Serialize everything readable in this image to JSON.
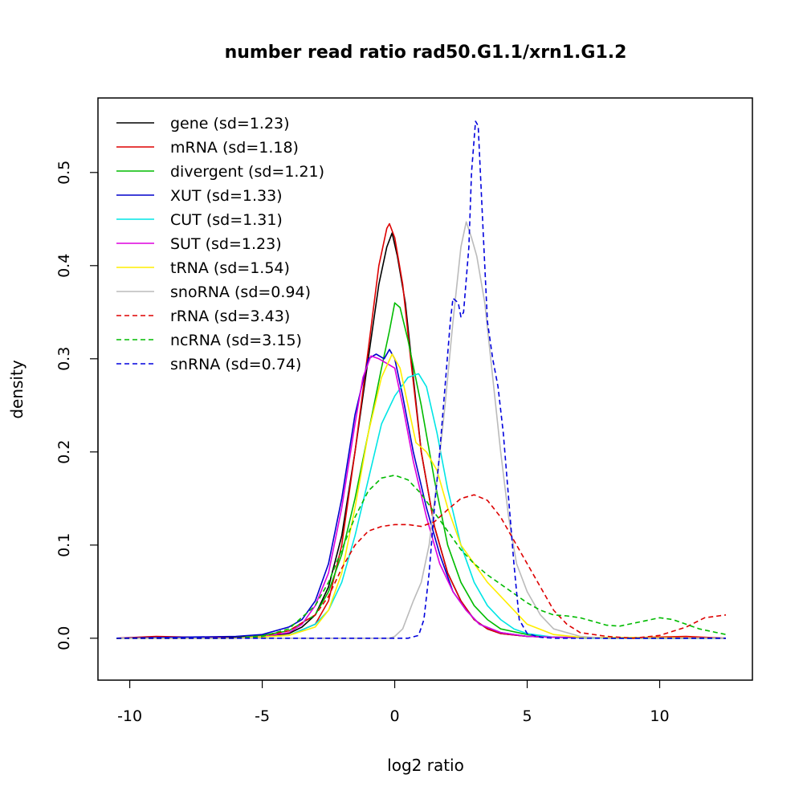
{
  "chart_data": {
    "type": "line",
    "title": "number read ratio rad50.G1.1/xrn1.G1.2",
    "xlabel": "log2 ratio",
    "ylabel": "density",
    "xlim": [
      -11.2,
      13.5
    ],
    "ylim": [
      -0.045,
      0.58
    ],
    "xticks": [
      -10,
      -5,
      0,
      5,
      10
    ],
    "xtick_labels": [
      "-10",
      "-5",
      "0",
      "5",
      "10"
    ],
    "yticks": [
      0.0,
      0.1,
      0.2,
      0.3,
      0.4,
      0.5
    ],
    "ytick_labels": [
      "0.0",
      "0.1",
      "0.2",
      "0.3",
      "0.4",
      "0.5"
    ],
    "grid": false,
    "legend_position": "top-left",
    "series": [
      {
        "name": "gene (sd=1.23)",
        "color": "#000000",
        "dash": "solid",
        "points": [
          [
            -10.5,
            0
          ],
          [
            -6,
            0.001
          ],
          [
            -5,
            0.002
          ],
          [
            -4,
            0.005
          ],
          [
            -3.5,
            0.012
          ],
          [
            -3,
            0.025
          ],
          [
            -2.5,
            0.055
          ],
          [
            -2,
            0.11
          ],
          [
            -1.5,
            0.2
          ],
          [
            -1,
            0.3
          ],
          [
            -0.6,
            0.38
          ],
          [
            -0.3,
            0.42
          ],
          [
            -0.1,
            0.435
          ],
          [
            0.1,
            0.41
          ],
          [
            0.4,
            0.36
          ],
          [
            0.7,
            0.28
          ],
          [
            1,
            0.2
          ],
          [
            1.5,
            0.12
          ],
          [
            2,
            0.07
          ],
          [
            2.5,
            0.04
          ],
          [
            3,
            0.02
          ],
          [
            3.5,
            0.01
          ],
          [
            4,
            0.005
          ],
          [
            5,
            0.002
          ],
          [
            6,
            0.001
          ],
          [
            8,
            0
          ],
          [
            12.5,
            0
          ]
        ]
      },
      {
        "name": "mRNA (sd=1.18)",
        "color": "#dd0000",
        "dash": "solid",
        "points": [
          [
            -10.5,
            0
          ],
          [
            -9,
            0.002
          ],
          [
            -6,
            0
          ],
          [
            -4,
            0.003
          ],
          [
            -3,
            0.015
          ],
          [
            -2.5,
            0.04
          ],
          [
            -2,
            0.1
          ],
          [
            -1.5,
            0.2
          ],
          [
            -1,
            0.31
          ],
          [
            -0.6,
            0.4
          ],
          [
            -0.3,
            0.44
          ],
          [
            -0.2,
            0.445
          ],
          [
            0,
            0.43
          ],
          [
            0.3,
            0.38
          ],
          [
            0.6,
            0.3
          ],
          [
            1,
            0.2
          ],
          [
            1.5,
            0.12
          ],
          [
            2,
            0.07
          ],
          [
            2.5,
            0.04
          ],
          [
            3,
            0.02
          ],
          [
            3.5,
            0.01
          ],
          [
            4,
            0.005
          ],
          [
            5,
            0.002
          ],
          [
            6,
            0.001
          ],
          [
            8,
            0
          ],
          [
            11,
            0.002
          ],
          [
            12.5,
            0
          ]
        ]
      },
      {
        "name": "divergent (sd=1.21)",
        "color": "#00bb00",
        "dash": "solid",
        "points": [
          [
            -10.5,
            0
          ],
          [
            -6,
            0
          ],
          [
            -5,
            0.003
          ],
          [
            -4,
            0.008
          ],
          [
            -3,
            0.025
          ],
          [
            -2.5,
            0.05
          ],
          [
            -2,
            0.09
          ],
          [
            -1.5,
            0.15
          ],
          [
            -1,
            0.22
          ],
          [
            -0.5,
            0.29
          ],
          [
            -0.2,
            0.33
          ],
          [
            0,
            0.36
          ],
          [
            0.2,
            0.355
          ],
          [
            0.5,
            0.32
          ],
          [
            1,
            0.25
          ],
          [
            1.5,
            0.17
          ],
          [
            2,
            0.1
          ],
          [
            2.5,
            0.06
          ],
          [
            3,
            0.035
          ],
          [
            3.5,
            0.02
          ],
          [
            4,
            0.01
          ],
          [
            5,
            0.004
          ],
          [
            6,
            0.001
          ],
          [
            8,
            0
          ],
          [
            12.5,
            0
          ]
        ]
      },
      {
        "name": "XUT (sd=1.33)",
        "color": "#0000cc",
        "dash": "solid",
        "points": [
          [
            -10.5,
            0
          ],
          [
            -6,
            0.002
          ],
          [
            -5,
            0.004
          ],
          [
            -4,
            0.012
          ],
          [
            -3.5,
            0.02
          ],
          [
            -3,
            0.04
          ],
          [
            -2.5,
            0.08
          ],
          [
            -2,
            0.15
          ],
          [
            -1.5,
            0.24
          ],
          [
            -1,
            0.3
          ],
          [
            -0.7,
            0.305
          ],
          [
            -0.4,
            0.3
          ],
          [
            -0.2,
            0.31
          ],
          [
            0,
            0.3
          ],
          [
            0.3,
            0.26
          ],
          [
            0.7,
            0.2
          ],
          [
            1.2,
            0.14
          ],
          [
            1.7,
            0.09
          ],
          [
            2.2,
            0.05
          ],
          [
            2.7,
            0.03
          ],
          [
            3.2,
            0.015
          ],
          [
            4,
            0.006
          ],
          [
            5,
            0.002
          ],
          [
            6,
            0.001
          ],
          [
            12.5,
            0
          ]
        ]
      },
      {
        "name": "CUT (sd=1.31)",
        "color": "#00e5e5",
        "dash": "solid",
        "points": [
          [
            -10.5,
            0
          ],
          [
            -6,
            0
          ],
          [
            -4,
            0.003
          ],
          [
            -3,
            0.015
          ],
          [
            -2.5,
            0.03
          ],
          [
            -2,
            0.06
          ],
          [
            -1.5,
            0.11
          ],
          [
            -1,
            0.17
          ],
          [
            -0.5,
            0.23
          ],
          [
            0,
            0.26
          ],
          [
            0.5,
            0.28
          ],
          [
            0.9,
            0.284
          ],
          [
            1.2,
            0.27
          ],
          [
            1.6,
            0.22
          ],
          [
            2,
            0.16
          ],
          [
            2.5,
            0.1
          ],
          [
            3,
            0.06
          ],
          [
            3.5,
            0.035
          ],
          [
            4,
            0.02
          ],
          [
            4.5,
            0.01
          ],
          [
            5,
            0.005
          ],
          [
            6,
            0.001
          ],
          [
            8,
            0
          ],
          [
            12.5,
            0
          ]
        ]
      },
      {
        "name": "SUT (sd=1.23)",
        "color": "#dd00dd",
        "dash": "solid",
        "points": [
          [
            -10.5,
            0
          ],
          [
            -6,
            0
          ],
          [
            -5,
            0.002
          ],
          [
            -4,
            0.006
          ],
          [
            -3.5,
            0.015
          ],
          [
            -3,
            0.035
          ],
          [
            -2.5,
            0.07
          ],
          [
            -2,
            0.14
          ],
          [
            -1.5,
            0.23
          ],
          [
            -1.2,
            0.28
          ],
          [
            -0.9,
            0.303
          ],
          [
            -0.6,
            0.3
          ],
          [
            -0.3,
            0.295
          ],
          [
            0,
            0.29
          ],
          [
            0.3,
            0.25
          ],
          [
            0.7,
            0.19
          ],
          [
            1.2,
            0.13
          ],
          [
            1.7,
            0.08
          ],
          [
            2.2,
            0.05
          ],
          [
            2.7,
            0.03
          ],
          [
            3.2,
            0.015
          ],
          [
            4,
            0.006
          ],
          [
            5,
            0.002
          ],
          [
            6,
            0.001
          ],
          [
            12.5,
            0
          ]
        ]
      },
      {
        "name": "tRNA (sd=1.54)",
        "color": "#ffee00",
        "dash": "solid",
        "points": [
          [
            -10.5,
            0
          ],
          [
            -6,
            0
          ],
          [
            -4,
            0.003
          ],
          [
            -3,
            0.012
          ],
          [
            -2.5,
            0.03
          ],
          [
            -2,
            0.07
          ],
          [
            -1.5,
            0.14
          ],
          [
            -1,
            0.22
          ],
          [
            -0.5,
            0.28
          ],
          [
            -0.1,
            0.305
          ],
          [
            0.2,
            0.29
          ],
          [
            0.5,
            0.25
          ],
          [
            0.8,
            0.21
          ],
          [
            1.2,
            0.2
          ],
          [
            1.6,
            0.18
          ],
          [
            2,
            0.14
          ],
          [
            2.5,
            0.1
          ],
          [
            3,
            0.08
          ],
          [
            3.5,
            0.06
          ],
          [
            4,
            0.045
          ],
          [
            4.5,
            0.03
          ],
          [
            5,
            0.015
          ],
          [
            6,
            0.004
          ],
          [
            7,
            0.001
          ],
          [
            12.5,
            0
          ]
        ]
      },
      {
        "name": "snoRNA (sd=0.94)",
        "color": "#bbbbbb",
        "dash": "solid",
        "points": [
          [
            -10.5,
            0
          ],
          [
            -2,
            0
          ],
          [
            -0.2,
            0
          ],
          [
            0,
            0.002
          ],
          [
            0.3,
            0.01
          ],
          [
            0.7,
            0.04
          ],
          [
            1,
            0.06
          ],
          [
            1.3,
            0.1
          ],
          [
            1.6,
            0.17
          ],
          [
            1.9,
            0.25
          ],
          [
            2.2,
            0.34
          ],
          [
            2.5,
            0.42
          ],
          [
            2.7,
            0.447
          ],
          [
            2.9,
            0.43
          ],
          [
            3.1,
            0.41
          ],
          [
            3.4,
            0.36
          ],
          [
            3.7,
            0.28
          ],
          [
            4,
            0.2
          ],
          [
            4.3,
            0.13
          ],
          [
            4.6,
            0.08
          ],
          [
            5,
            0.05
          ],
          [
            5.5,
            0.025
          ],
          [
            6,
            0.01
          ],
          [
            7,
            0.002
          ],
          [
            8,
            0
          ],
          [
            12.5,
            0
          ]
        ]
      },
      {
        "name": "rRNA (sd=3.43)",
        "color": "#dd0000",
        "dash": "dashed",
        "points": [
          [
            -10.5,
            0
          ],
          [
            -6,
            0
          ],
          [
            -5,
            0.002
          ],
          [
            -4,
            0.008
          ],
          [
            -3,
            0.025
          ],
          [
            -2.5,
            0.045
          ],
          [
            -2,
            0.075
          ],
          [
            -1.5,
            0.1
          ],
          [
            -1,
            0.115
          ],
          [
            -0.5,
            0.12
          ],
          [
            0,
            0.122
          ],
          [
            0.5,
            0.122
          ],
          [
            1,
            0.12
          ],
          [
            1.5,
            0.125
          ],
          [
            2,
            0.138
          ],
          [
            2.5,
            0.15
          ],
          [
            3,
            0.154
          ],
          [
            3.5,
            0.148
          ],
          [
            4,
            0.13
          ],
          [
            4.5,
            0.105
          ],
          [
            5,
            0.08
          ],
          [
            5.5,
            0.055
          ],
          [
            6,
            0.03
          ],
          [
            6.5,
            0.015
          ],
          [
            7,
            0.006
          ],
          [
            8,
            0.002
          ],
          [
            9,
            0
          ],
          [
            10,
            0.003
          ],
          [
            11,
            0.012
          ],
          [
            11.7,
            0.022
          ],
          [
            12.5,
            0.025
          ]
        ]
      },
      {
        "name": "ncRNA (sd=3.15)",
        "color": "#00bb00",
        "dash": "dashed",
        "points": [
          [
            -10.5,
            0
          ],
          [
            -6,
            0
          ],
          [
            -5,
            0.002
          ],
          [
            -4,
            0.01
          ],
          [
            -3,
            0.035
          ],
          [
            -2.5,
            0.06
          ],
          [
            -2,
            0.095
          ],
          [
            -1.5,
            0.13
          ],
          [
            -1,
            0.158
          ],
          [
            -0.5,
            0.172
          ],
          [
            0,
            0.175
          ],
          [
            0.5,
            0.17
          ],
          [
            1,
            0.155
          ],
          [
            1.5,
            0.135
          ],
          [
            2,
            0.115
          ],
          [
            2.5,
            0.095
          ],
          [
            3,
            0.08
          ],
          [
            3.5,
            0.068
          ],
          [
            4,
            0.058
          ],
          [
            4.5,
            0.048
          ],
          [
            5,
            0.038
          ],
          [
            5.5,
            0.03
          ],
          [
            6,
            0.025
          ],
          [
            6.5,
            0.024
          ],
          [
            7,
            0.022
          ],
          [
            7.5,
            0.018
          ],
          [
            8,
            0.014
          ],
          [
            8.5,
            0.013
          ],
          [
            9,
            0.016
          ],
          [
            9.5,
            0.019
          ],
          [
            10,
            0.022
          ],
          [
            10.5,
            0.02
          ],
          [
            11,
            0.015
          ],
          [
            11.5,
            0.01
          ],
          [
            12,
            0.007
          ],
          [
            12.5,
            0.004
          ]
        ]
      },
      {
        "name": "snRNA (sd=0.74)",
        "color": "#0000dd",
        "dash": "dashed",
        "points": [
          [
            -10.5,
            0
          ],
          [
            0.5,
            0
          ],
          [
            0.9,
            0.003
          ],
          [
            1.1,
            0.02
          ],
          [
            1.3,
            0.07
          ],
          [
            1.5,
            0.14
          ],
          [
            1.7,
            0.2
          ],
          [
            1.9,
            0.27
          ],
          [
            2.1,
            0.34
          ],
          [
            2.2,
            0.365
          ],
          [
            2.4,
            0.36
          ],
          [
            2.5,
            0.345
          ],
          [
            2.6,
            0.35
          ],
          [
            2.8,
            0.42
          ],
          [
            2.9,
            0.5
          ],
          [
            3.05,
            0.555
          ],
          [
            3.15,
            0.55
          ],
          [
            3.3,
            0.46
          ],
          [
            3.5,
            0.34
          ],
          [
            3.7,
            0.3
          ],
          [
            3.9,
            0.27
          ],
          [
            4.1,
            0.22
          ],
          [
            4.3,
            0.15
          ],
          [
            4.5,
            0.08
          ],
          [
            4.7,
            0.02
          ],
          [
            5,
            0.005
          ],
          [
            5.5,
            0.001
          ],
          [
            6,
            0
          ],
          [
            12.5,
            0
          ]
        ]
      }
    ]
  }
}
